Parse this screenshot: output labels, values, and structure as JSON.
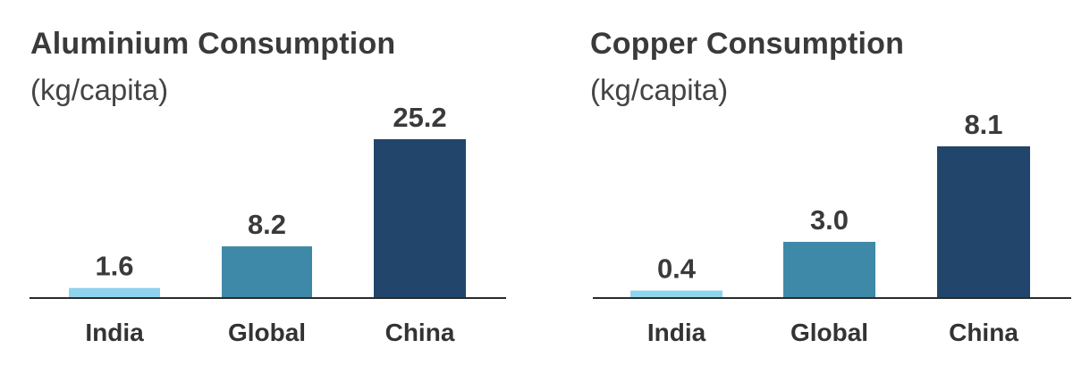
{
  "chart_data": [
    {
      "type": "bar",
      "title": "Aluminium Consumption",
      "subtitle": "(kg/capita)",
      "ylabel": "kg/capita",
      "categories": [
        "India",
        "Global",
        "China"
      ],
      "values": [
        1.6,
        8.2,
        25.2
      ],
      "value_labels": [
        "1.6",
        "8.2",
        "25.2"
      ],
      "ylim": [
        0,
        25.2
      ],
      "grid": false,
      "colors": [
        "#8fd3ec",
        "#3e88a8",
        "#22466b"
      ]
    },
    {
      "type": "bar",
      "title": "Copper Consumption",
      "subtitle": "(kg/capita)",
      "ylabel": "kg/capita",
      "categories": [
        "India",
        "Global",
        "China"
      ],
      "values": [
        0.4,
        3.0,
        8.1
      ],
      "value_labels": [
        "0.4",
        "3.0",
        "8.1"
      ],
      "ylim": [
        0,
        8.1
      ],
      "grid": false,
      "colors": [
        "#8fd3ec",
        "#3e88a8",
        "#22466b"
      ]
    }
  ]
}
